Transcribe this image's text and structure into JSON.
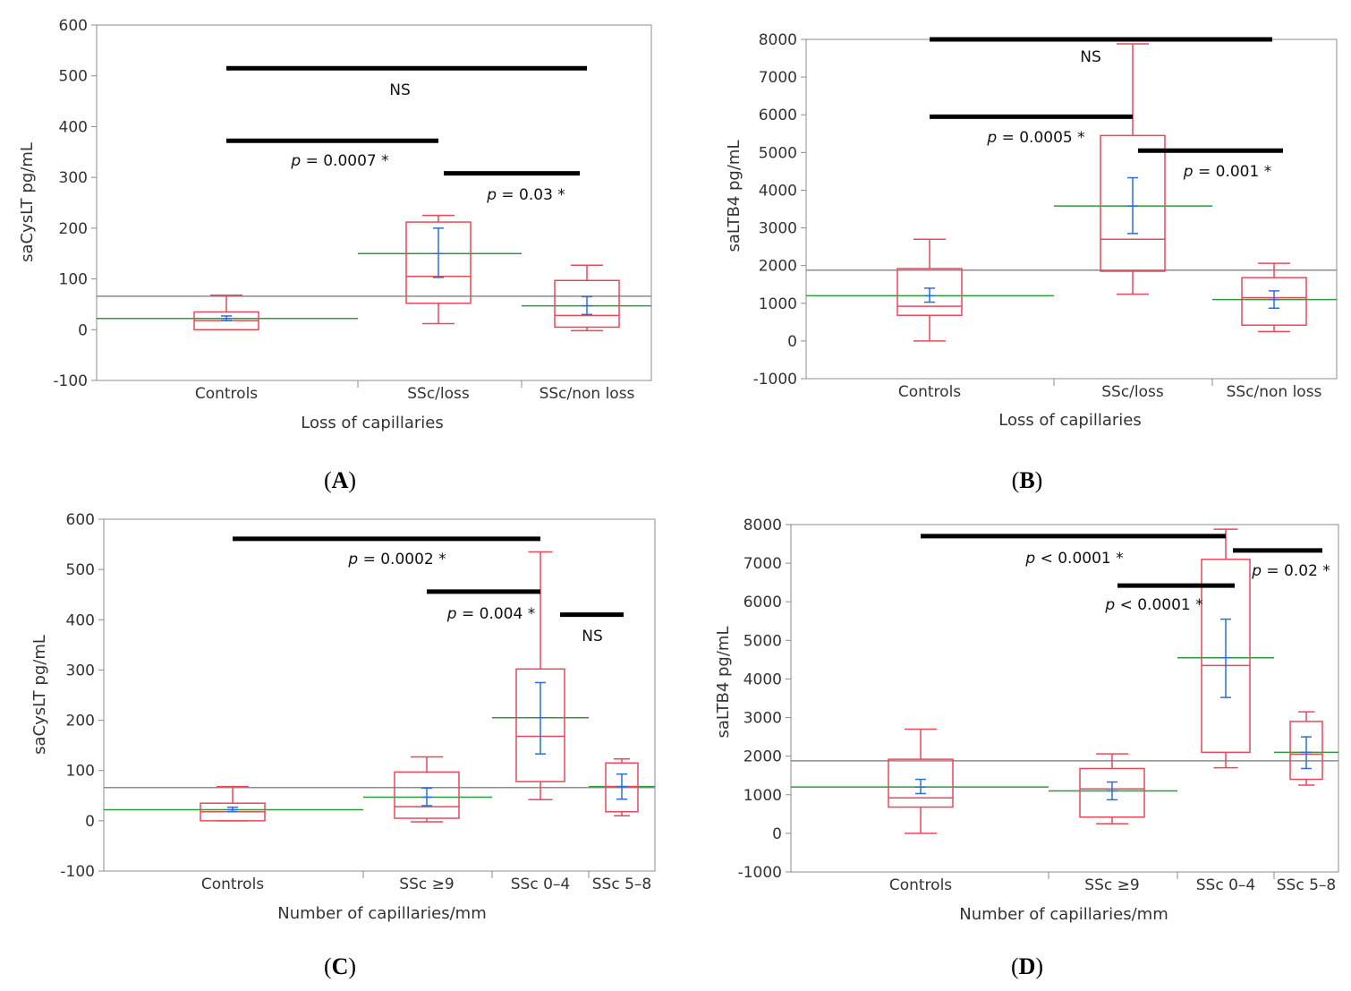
{
  "figure": {
    "panel_labels": [
      "(A)",
      "(B)",
      "(C)",
      "(D)"
    ],
    "colors": {
      "box": "#e8495a",
      "group_mean": "#2e9a3c",
      "ci": "#2a6fd6",
      "grand_mean": "#8c8c8c",
      "bar": "#000000",
      "axis": "#8c8c8c"
    }
  },
  "chart_data": [
    {
      "type": "boxplot",
      "panel": "A",
      "xlabel": "Loss of capillaries",
      "ylabel": "saCysLT pg/mL",
      "ylim": [
        -100,
        600
      ],
      "yticks": [
        "-100",
        "0",
        "100",
        "200",
        "300",
        "400",
        "500",
        "600"
      ],
      "grand_mean": 66,
      "groups": [
        {
          "name": "Controls",
          "min": 0,
          "q1": 0,
          "median": 18,
          "q3": 35,
          "max": 68,
          "mean": 22,
          "ci": [
            18,
            27
          ]
        },
        {
          "name": "SSc/loss",
          "min": 12,
          "q1": 52,
          "median": 105,
          "q3": 212,
          "max": 225,
          "mean": 150,
          "ci": [
            103,
            200
          ]
        },
        {
          "name": "SSc/non loss",
          "min": -2,
          "q1": 5,
          "median": 28,
          "q3": 97,
          "max": 127,
          "mean": 47,
          "ci": [
            30,
            65
          ]
        }
      ],
      "comparisons": [
        {
          "from": "Controls",
          "to": "SSc/non loss",
          "y": 515,
          "label": "NS"
        },
        {
          "from": "Controls",
          "to": "SSc/loss",
          "y": 372,
          "label": "p = 0.0007 *"
        },
        {
          "from": "SSc/loss",
          "to": "SSc/non loss",
          "y": 308,
          "label": "p = 0.03 *"
        }
      ]
    },
    {
      "type": "boxplot",
      "panel": "B",
      "xlabel": "Loss of capillaries",
      "ylabel": "saLTB4 pg/mL",
      "ylim": [
        -1000,
        8000
      ],
      "yticks": [
        "-1000",
        "0",
        "1000",
        "2000",
        "3000",
        "4000",
        "5000",
        "6000",
        "7000",
        "8000"
      ],
      "grand_mean": 1880,
      "groups": [
        {
          "name": "Controls",
          "min": 0,
          "q1": 680,
          "median": 920,
          "q3": 1920,
          "max": 2700,
          "mean": 1200,
          "ci": [
            1030,
            1400
          ]
        },
        {
          "name": "SSc/loss",
          "min": 1240,
          "q1": 1850,
          "median": 2700,
          "q3": 5450,
          "max": 7880,
          "mean": 3580,
          "ci": [
            2850,
            4330
          ]
        },
        {
          "name": "SSc/non loss",
          "min": 250,
          "q1": 420,
          "median": 1150,
          "q3": 1680,
          "max": 2060,
          "mean": 1100,
          "ci": [
            870,
            1330
          ]
        }
      ],
      "comparisons": [
        {
          "from": "Controls",
          "to": "SSc/non loss",
          "y": 8000,
          "label": "NS"
        },
        {
          "from": "Controls",
          "to": "SSc/loss",
          "y": 5950,
          "label": "p = 0.0005 *"
        },
        {
          "from": "SSc/loss",
          "to": "SSc/non loss",
          "y": 5050,
          "label": "p = 0.001 *"
        }
      ]
    },
    {
      "type": "boxplot",
      "panel": "C",
      "xlabel": "Number of capillaries/mm",
      "ylabel": "saCysLT pg/mL",
      "ylim": [
        -100,
        600
      ],
      "yticks": [
        "-100",
        "0",
        "100",
        "200",
        "300",
        "400",
        "500",
        "600"
      ],
      "grand_mean": 66,
      "groups": [
        {
          "name": "Controls",
          "min": 0,
          "q1": 0,
          "median": 18,
          "q3": 35,
          "max": 68,
          "mean": 22,
          "ci": [
            18,
            27
          ]
        },
        {
          "name": "SSc ≥9",
          "min": -2,
          "q1": 5,
          "median": 28,
          "q3": 97,
          "max": 127,
          "mean": 47,
          "ci": [
            30,
            65
          ]
        },
        {
          "name": "SSc 0–4",
          "min": 42,
          "q1": 78,
          "median": 168,
          "q3": 302,
          "max": 535,
          "mean": 205,
          "ci": [
            133,
            275
          ]
        },
        {
          "name": "SSc 5–8",
          "min": 10,
          "q1": 18,
          "median": 68,
          "q3": 115,
          "max": 123,
          "mean": 68,
          "ci": [
            43,
            93
          ]
        }
      ],
      "comparisons": [
        {
          "from": "Controls",
          "to": "SSc 0–4",
          "y": 561,
          "label": "p = 0.0002 *"
        },
        {
          "from": "SSc ≥9",
          "to": "SSc 0–4",
          "y": 456,
          "label": "p = 0.004 *"
        },
        {
          "from": "SSc 0–4",
          "to": "SSc 5–8",
          "y": 410,
          "label": "NS"
        }
      ]
    },
    {
      "type": "boxplot",
      "panel": "D",
      "xlabel": "Number of capillaries/mm",
      "ylabel": "saLTB4 pg/mL",
      "ylim": [
        -1000,
        8000
      ],
      "yticks": [
        "-1000",
        "0",
        "1000",
        "2000",
        "3000",
        "4000",
        "5000",
        "6000",
        "7000",
        "8000"
      ],
      "grand_mean": 1880,
      "groups": [
        {
          "name": "Controls",
          "min": 0,
          "q1": 680,
          "median": 920,
          "q3": 1920,
          "max": 2700,
          "mean": 1200,
          "ci": [
            1030,
            1400
          ]
        },
        {
          "name": "SSc ≥9",
          "min": 250,
          "q1": 420,
          "median": 1150,
          "q3": 1680,
          "max": 2060,
          "mean": 1100,
          "ci": [
            870,
            1330
          ]
        },
        {
          "name": "SSc 0–4",
          "min": 1700,
          "q1": 2100,
          "median": 4350,
          "q3": 7100,
          "max": 7880,
          "mean": 4550,
          "ci": [
            3520,
            5550
          ]
        },
        {
          "name": "SSc 5–8",
          "min": 1250,
          "q1": 1400,
          "median": 2050,
          "q3": 2900,
          "max": 3150,
          "mean": 2100,
          "ci": [
            1680,
            2500
          ]
        }
      ],
      "comparisons": [
        {
          "from": "Controls",
          "to": "SSc 0–4",
          "y": 7700,
          "label": "p < 0.0001 *"
        },
        {
          "from": "SSc ≥9",
          "to": "SSc 0–4",
          "y": 6420,
          "label": "p < 0.0001 *"
        },
        {
          "from": "SSc 0–4",
          "to": "SSc 5–8",
          "y": 7330,
          "label": "p = 0.02 *"
        }
      ]
    }
  ]
}
